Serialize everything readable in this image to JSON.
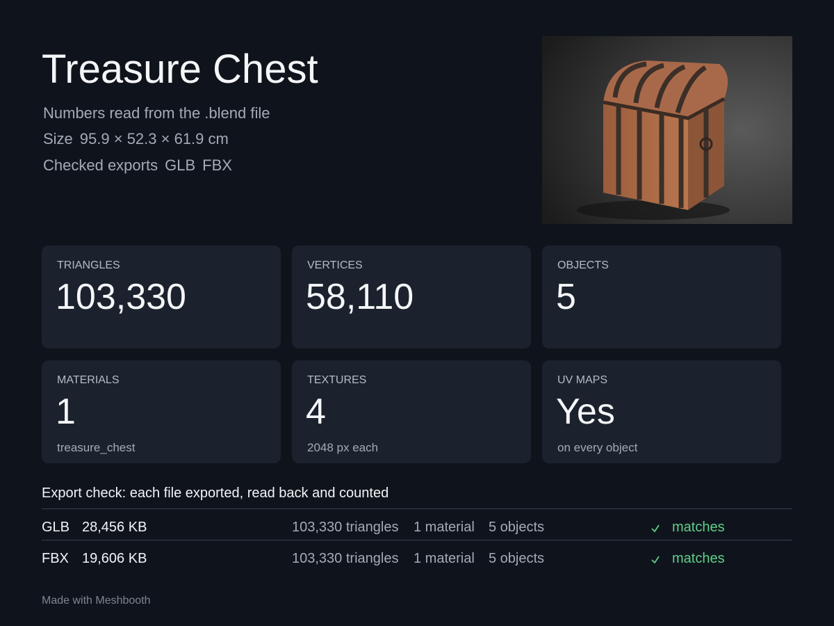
{
  "header": {
    "title": "Treasure Chest",
    "source": "Numbers read from the .blend file",
    "size_label": "Size",
    "size_value": "95.9 × 52.3 × 61.9 cm",
    "exports_label": "Checked exports",
    "exports": [
      "GLB",
      "FBX"
    ]
  },
  "stats": [
    {
      "label": "TRIANGLES",
      "value": "103,330"
    },
    {
      "label": "VERTICES",
      "value": "58,110"
    },
    {
      "label": "OBJECTS",
      "value": "5"
    },
    {
      "label": "MATERIALS",
      "value": "1",
      "note": "treasure_chest"
    },
    {
      "label": "TEXTURES",
      "value": "4",
      "note": "2048 px each"
    },
    {
      "label": "UV MAPS",
      "value": "Yes",
      "note": "on every object"
    }
  ],
  "export_check": {
    "heading": "Export check: each file exported, read back and counted",
    "rows": [
      {
        "format": "GLB",
        "size": "28,456 KB",
        "triangles": "103,330 triangles",
        "materials": "1 material",
        "objects": "5 objects",
        "status": "matches"
      },
      {
        "format": "FBX",
        "size": "19,606 KB",
        "triangles": "103,330 triangles",
        "materials": "1 material",
        "objects": "5 objects",
        "status": "matches"
      }
    ]
  },
  "footer": "Made with Meshbooth"
}
